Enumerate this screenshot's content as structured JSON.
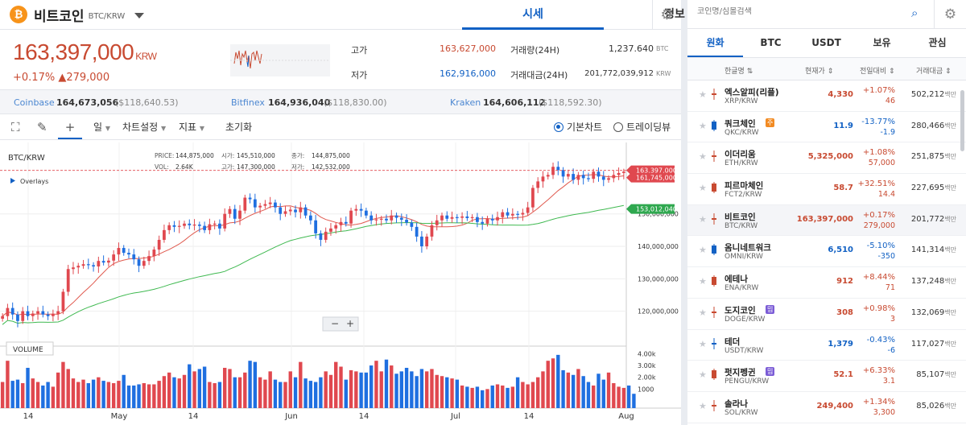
{
  "header": {
    "coin_name": "비트코인",
    "coin_code": "BTC/KRW",
    "tabs": [
      {
        "label": "시세"
      },
      {
        "label": "정보"
      }
    ]
  },
  "price": {
    "current": "163,397,000",
    "unit": "KRW",
    "change_pct": "+0.17%",
    "change_abs": "▲279,000"
  },
  "stats": {
    "high_label": "고가",
    "high": "163,627,000",
    "low_label": "저가",
    "low": "162,916,000",
    "vol24_label": "거래량(24H)",
    "vol24": "1,237.640",
    "vol24_unit": "BTC",
    "amt24_label": "거래대금(24H)",
    "amt24": "201,772,039,912",
    "amt24_unit": "KRW"
  },
  "exchanges": [
    {
      "name": "Coinbase",
      "price": "164,673,056",
      "usd": "($118,640.53)"
    },
    {
      "name": "Bitfinex",
      "price": "164,936,040",
      "usd": "($118,830.00)"
    },
    {
      "name": "Kraken",
      "price": "164,606,112",
      "usd": "($118,592.30)"
    }
  ],
  "toolbar": {
    "interval": "일",
    "chart_settings": "차트설정",
    "indicators": "지표",
    "reset": "초기화",
    "basic_chart": "기본차트",
    "tradingview": "트레이딩뷰"
  },
  "chart_legend": {
    "symbol": "BTC/KRW",
    "price_label": "PRICE:",
    "price": "144,875,000",
    "open_label": "시가:",
    "open": "145,510,000",
    "close_label": "종가:",
    "close": "144,875,000",
    "vol_label": "VOL:",
    "vol": "2.64K",
    "high_label": "고가:",
    "high": "147,300,000",
    "low_label": "저가:",
    "low": "142,532,000",
    "overlays": "Overlays",
    "volume_label": "VOLUME"
  },
  "chart_data": {
    "type": "candlestick",
    "price_axis": {
      "ylim": [
        110000000,
        172000000
      ],
      "ticks": [
        "120,000,000",
        "130,000,000",
        "140,000,000",
        "150,000,000"
      ]
    },
    "volume_axis": {
      "ticks": [
        "1000",
        "2.00k",
        "3.00k",
        "4.00k"
      ]
    },
    "x_ticks": [
      "14",
      "May",
      "14",
      "Jun",
      "14",
      "Jul",
      "14",
      "Aug"
    ],
    "price_tags": {
      "current": "163,397,000",
      "ma_short": "161,745,000",
      "ma_long": "153,012,040"
    },
    "closes": [
      118.5,
      121,
      119,
      117,
      120,
      118.5,
      119.3,
      120,
      119,
      118.5,
      119.2,
      120,
      126,
      133,
      133.5,
      134,
      134.5,
      134.2,
      133.8,
      135.5,
      135,
      135.6,
      137.5,
      139.5,
      138,
      137.5,
      136,
      134,
      135.5,
      137,
      139,
      142,
      145,
      146.5,
      146,
      146.3,
      147,
      146.5,
      146.7,
      146.3,
      145,
      146.8,
      147,
      145.5,
      150,
      151.5,
      148.5,
      151,
      155,
      154.5,
      152,
      152.5,
      153,
      153.5,
      152,
      150,
      150.8,
      151.3,
      150.5,
      152,
      149.5,
      148,
      144,
      142,
      144.5,
      145.5,
      146.5,
      147.5,
      147,
      151,
      151.5,
      151,
      149.5,
      148,
      148.3,
      148.5,
      148,
      149.5,
      148.8,
      148.2,
      147.3,
      146,
      143,
      140,
      143,
      146.5,
      148,
      149.5,
      148.5,
      149,
      148.8,
      149.2,
      148.7,
      149,
      147.5,
      147,
      148.5,
      148,
      149,
      150.5,
      149.5,
      150,
      149.8,
      150.3,
      152,
      158,
      160,
      161.5,
      162,
      164.5,
      163.5,
      161.5,
      162.3,
      160.5,
      162,
      161,
      160.8,
      163,
      161.5,
      160.5,
      161,
      162,
      162.6,
      163
    ],
    "volumes": [
      1.6,
      3.4,
      1.7,
      1.8,
      1.5,
      2.8,
      1.9,
      1.6,
      1.3,
      1.6,
      1.2,
      2.4,
      3.3,
      2.7,
      1.9,
      1.6,
      1.8,
      1.5,
      1.8,
      2.0,
      1.7,
      1.6,
      1.5,
      1.7,
      2.2,
      1.3,
      1.3,
      1.4,
      1.5,
      1.4,
      1.4,
      1.7,
      2.1,
      2.4,
      2.0,
      1.9,
      2.2,
      3.1,
      2.5,
      2.7,
      2.9,
      1.6,
      1.5,
      1.6,
      2.8,
      2.7,
      2.0,
      2.0,
      2.4,
      3.4,
      3.3,
      2.0,
      1.8,
      2.5,
      1.8,
      1.6,
      1.6,
      2.5,
      2.0,
      3.3,
      1.9,
      1.7,
      1.6,
      2.0,
      2.5,
      2.2,
      3.3,
      2.9,
      1.8,
      2.6,
      2.5,
      2.4,
      2.4,
      3.0,
      3.4,
      2.5,
      3.5,
      3.0,
      2.3,
      2.5,
      2.8,
      2.5,
      2.1,
      2.7,
      2.5,
      2.7,
      2.2,
      2.1,
      2.0,
      1.9,
      1.8,
      1.3,
      1.2,
      1.1,
      1.2,
      0.9,
      1.0,
      1.3,
      1.4,
      1.3,
      1.1,
      1.2,
      2.0,
      1.6,
      1.4,
      1.6,
      2.0,
      2.5,
      3.4,
      3.6,
      3.9,
      2.6,
      2.4,
      2.2,
      2.7,
      2.1,
      1.6,
      1.3,
      2.3,
      1.8,
      2.4,
      1.5,
      1.2,
      1.1,
      1.3,
      0.6
    ]
  },
  "market": {
    "search_placeholder": "코인명/심볼검색",
    "tabs": [
      "원화",
      "BTC",
      "USDT",
      "보유",
      "관심"
    ],
    "columns": {
      "name": "한글명 ⇅",
      "price": "현재가 ⇕",
      "change": "전일대비 ⇕",
      "volume": "거래대금 ⇕"
    },
    "rows": [
      {
        "name": "엑스알피(리플)",
        "pair": "XRP/KRW",
        "price": "4,330",
        "pct": "+1.07%",
        "abs": "46",
        "vol": "502,212",
        "unit": "백만",
        "dir": "up"
      },
      {
        "name": "쿼크체인",
        "tag": "주",
        "tag_color": "#f28b23",
        "pair": "QKC/KRW",
        "price": "11.9",
        "pct": "-13.77%",
        "abs": "-1.9",
        "vol": "280,466",
        "unit": "백만",
        "dir": "down"
      },
      {
        "name": "이더리움",
        "pair": "ETH/KRW",
        "price": "5,325,000",
        "pct": "+1.08%",
        "abs": "57,000",
        "vol": "251,875",
        "unit": "백만",
        "dir": "up"
      },
      {
        "name": "피르마체인",
        "pair": "FCT2/KRW",
        "price": "58.7",
        "pct": "+32.51%",
        "abs": "14.4",
        "vol": "227,695",
        "unit": "백만",
        "dir": "up"
      },
      {
        "name": "비트코인",
        "pair": "BTC/KRW",
        "price": "163,397,000",
        "pct": "+0.17%",
        "abs": "279,000",
        "vol": "201,772",
        "unit": "백만",
        "dir": "up",
        "selected": true
      },
      {
        "name": "옴니네트워크",
        "pair": "OMNI/KRW",
        "price": "6,510",
        "pct": "-5.10%",
        "abs": "-350",
        "vol": "141,314",
        "unit": "백만",
        "dir": "down"
      },
      {
        "name": "에테나",
        "pair": "ENA/KRW",
        "price": "912",
        "pct": "+8.44%",
        "abs": "71",
        "vol": "137,248",
        "unit": "백만",
        "dir": "up"
      },
      {
        "name": "도지코인",
        "tag": "밈",
        "tag_color": "#7b5cd6",
        "pair": "DOGE/KRW",
        "price": "308",
        "pct": "+0.98%",
        "abs": "3",
        "vol": "132,069",
        "unit": "백만",
        "dir": "up"
      },
      {
        "name": "테더",
        "pair": "USDT/KRW",
        "price": "1,379",
        "pct": "-0.43%",
        "abs": "-6",
        "vol": "117,027",
        "unit": "백만",
        "dir": "down"
      },
      {
        "name": "펏지펭귄",
        "tag": "밈",
        "tag_color": "#7b5cd6",
        "pair": "PENGU/KRW",
        "price": "52.1",
        "pct": "+6.33%",
        "abs": "3.1",
        "vol": "85,107",
        "unit": "백만",
        "dir": "up"
      },
      {
        "name": "솔라나",
        "pair": "SOL/KRW",
        "price": "249,400",
        "pct": "+1.34%",
        "abs": "3,300",
        "vol": "85,026",
        "unit": "백만",
        "dir": "up"
      }
    ]
  }
}
